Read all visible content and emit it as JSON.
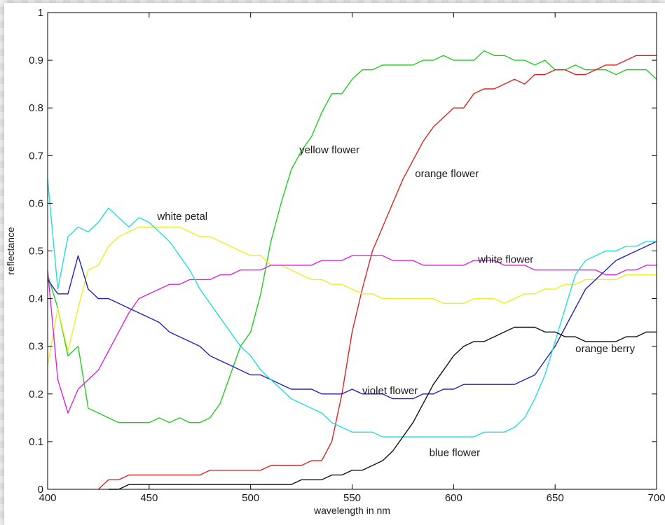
{
  "chart_data": {
    "type": "line",
    "title": "",
    "xlabel": "wavelength in nm",
    "ylabel": "reflectance",
    "xlim": [
      400,
      700
    ],
    "ylim": [
      0,
      1
    ],
    "xticks": [
      "400",
      "450",
      "500",
      "550",
      "600",
      "650",
      "700"
    ],
    "yticks": [
      "0",
      "0.1",
      "0.2",
      "0.3",
      "0.4",
      "0.5",
      "0.6",
      "0.7",
      "0.8",
      "0.9",
      "1"
    ],
    "grid": false,
    "series": [
      {
        "name": "yellow flower",
        "color": "#22cc22",
        "x": [
          400,
          405,
          410,
          415,
          420,
          425,
          430,
          435,
          440,
          445,
          450,
          455,
          460,
          465,
          470,
          475,
          480,
          485,
          490,
          495,
          500,
          505,
          510,
          515,
          520,
          525,
          530,
          535,
          540,
          545,
          550,
          555,
          560,
          565,
          570,
          575,
          580,
          585,
          590,
          595,
          600,
          605,
          610,
          615,
          620,
          625,
          630,
          635,
          640,
          645,
          650,
          655,
          660,
          665,
          670,
          675,
          680,
          685,
          690,
          695,
          700
        ],
        "y": [
          0.45,
          0.38,
          0.28,
          0.3,
          0.17,
          0.16,
          0.15,
          0.14,
          0.14,
          0.14,
          0.14,
          0.15,
          0.14,
          0.15,
          0.14,
          0.14,
          0.15,
          0.18,
          0.24,
          0.3,
          0.33,
          0.41,
          0.52,
          0.6,
          0.67,
          0.71,
          0.74,
          0.79,
          0.83,
          0.83,
          0.86,
          0.88,
          0.88,
          0.89,
          0.89,
          0.89,
          0.89,
          0.9,
          0.9,
          0.91,
          0.9,
          0.9,
          0.9,
          0.92,
          0.91,
          0.91,
          0.9,
          0.9,
          0.89,
          0.9,
          0.88,
          0.88,
          0.89,
          0.88,
          0.88,
          0.88,
          0.87,
          0.88,
          0.88,
          0.88,
          0.86
        ]
      },
      {
        "name": "orange flower",
        "color": "#dd2222",
        "x": [
          425,
          430,
          435,
          440,
          445,
          450,
          455,
          460,
          465,
          470,
          475,
          480,
          485,
          490,
          495,
          500,
          505,
          510,
          515,
          520,
          525,
          530,
          535,
          540,
          545,
          550,
          555,
          560,
          565,
          570,
          575,
          580,
          585,
          590,
          595,
          600,
          605,
          610,
          615,
          620,
          625,
          630,
          635,
          640,
          645,
          650,
          655,
          660,
          665,
          670,
          675,
          680,
          685,
          690,
          695,
          700
        ],
        "y": [
          0.0,
          0.02,
          0.02,
          0.03,
          0.03,
          0.03,
          0.03,
          0.03,
          0.03,
          0.03,
          0.03,
          0.04,
          0.04,
          0.04,
          0.04,
          0.04,
          0.04,
          0.05,
          0.05,
          0.05,
          0.05,
          0.06,
          0.06,
          0.1,
          0.2,
          0.33,
          0.42,
          0.5,
          0.55,
          0.6,
          0.65,
          0.69,
          0.73,
          0.76,
          0.78,
          0.8,
          0.8,
          0.83,
          0.84,
          0.84,
          0.85,
          0.86,
          0.85,
          0.87,
          0.87,
          0.88,
          0.88,
          0.87,
          0.87,
          0.88,
          0.89,
          0.89,
          0.9,
          0.91,
          0.91,
          0.91
        ]
      },
      {
        "name": "white petal",
        "color": "#eeee22",
        "x": [
          400,
          405,
          410,
          415,
          420,
          425,
          430,
          435,
          440,
          445,
          450,
          455,
          460,
          465,
          470,
          475,
          480,
          485,
          490,
          495,
          500,
          505,
          510,
          515,
          520,
          525,
          530,
          535,
          540,
          545,
          550,
          555,
          560,
          565,
          570,
          575,
          580,
          585,
          590,
          595,
          600,
          605,
          610,
          615,
          620,
          625,
          630,
          635,
          640,
          645,
          650,
          655,
          660,
          665,
          670,
          675,
          680,
          685,
          690,
          695,
          700
        ],
        "y": [
          0.26,
          0.38,
          0.29,
          0.38,
          0.46,
          0.47,
          0.51,
          0.53,
          0.54,
          0.55,
          0.55,
          0.55,
          0.55,
          0.55,
          0.54,
          0.53,
          0.53,
          0.52,
          0.51,
          0.5,
          0.49,
          0.49,
          0.47,
          0.47,
          0.46,
          0.45,
          0.44,
          0.44,
          0.43,
          0.43,
          0.42,
          0.41,
          0.41,
          0.4,
          0.4,
          0.4,
          0.4,
          0.4,
          0.4,
          0.39,
          0.39,
          0.39,
          0.4,
          0.4,
          0.4,
          0.39,
          0.4,
          0.41,
          0.41,
          0.42,
          0.42,
          0.43,
          0.43,
          0.44,
          0.44,
          0.44,
          0.44,
          0.45,
          0.45,
          0.45,
          0.45
        ]
      },
      {
        "name": "white flower",
        "color": "#dd22dd",
        "x": [
          400,
          405,
          410,
          415,
          420,
          425,
          430,
          435,
          440,
          445,
          450,
          455,
          460,
          465,
          470,
          475,
          480,
          485,
          490,
          495,
          500,
          505,
          510,
          515,
          520,
          525,
          530,
          535,
          540,
          545,
          550,
          555,
          560,
          565,
          570,
          575,
          580,
          585,
          590,
          595,
          600,
          605,
          610,
          615,
          620,
          625,
          630,
          635,
          640,
          645,
          650,
          655,
          660,
          665,
          670,
          675,
          680,
          685,
          690,
          695,
          700
        ],
        "y": [
          0.46,
          0.23,
          0.16,
          0.21,
          0.23,
          0.25,
          0.29,
          0.33,
          0.37,
          0.4,
          0.41,
          0.42,
          0.43,
          0.43,
          0.44,
          0.44,
          0.44,
          0.45,
          0.45,
          0.46,
          0.46,
          0.46,
          0.47,
          0.47,
          0.47,
          0.47,
          0.47,
          0.48,
          0.48,
          0.48,
          0.49,
          0.49,
          0.49,
          0.49,
          0.48,
          0.48,
          0.48,
          0.47,
          0.47,
          0.47,
          0.47,
          0.47,
          0.48,
          0.48,
          0.48,
          0.47,
          0.47,
          0.47,
          0.46,
          0.46,
          0.46,
          0.46,
          0.46,
          0.46,
          0.46,
          0.45,
          0.45,
          0.46,
          0.46,
          0.47,
          0.47
        ]
      },
      {
        "name": "violet flower",
        "color": "#2222bb",
        "x": [
          400,
          405,
          410,
          415,
          420,
          425,
          430,
          435,
          440,
          445,
          450,
          455,
          460,
          465,
          470,
          475,
          480,
          485,
          490,
          495,
          500,
          505,
          510,
          515,
          520,
          525,
          530,
          535,
          540,
          545,
          550,
          555,
          560,
          565,
          570,
          575,
          580,
          585,
          590,
          595,
          600,
          605,
          610,
          615,
          620,
          625,
          630,
          635,
          640,
          645,
          650,
          655,
          660,
          665,
          670,
          675,
          680,
          685,
          690,
          695,
          700
        ],
        "y": [
          0.44,
          0.41,
          0.41,
          0.49,
          0.42,
          0.4,
          0.4,
          0.39,
          0.38,
          0.37,
          0.36,
          0.35,
          0.33,
          0.32,
          0.31,
          0.3,
          0.28,
          0.27,
          0.26,
          0.25,
          0.24,
          0.24,
          0.23,
          0.22,
          0.21,
          0.21,
          0.21,
          0.2,
          0.2,
          0.2,
          0.21,
          0.2,
          0.2,
          0.2,
          0.19,
          0.19,
          0.19,
          0.2,
          0.2,
          0.21,
          0.21,
          0.22,
          0.22,
          0.22,
          0.22,
          0.22,
          0.22,
          0.23,
          0.24,
          0.27,
          0.3,
          0.34,
          0.38,
          0.42,
          0.44,
          0.46,
          0.48,
          0.49,
          0.5,
          0.51,
          0.52
        ]
      },
      {
        "name": "blue flower",
        "color": "#22dddd",
        "x": [
          400,
          405,
          410,
          415,
          420,
          425,
          430,
          435,
          440,
          445,
          450,
          455,
          460,
          465,
          470,
          475,
          480,
          485,
          490,
          495,
          500,
          505,
          510,
          515,
          520,
          525,
          530,
          535,
          540,
          545,
          550,
          555,
          560,
          565,
          570,
          575,
          580,
          585,
          590,
          595,
          600,
          605,
          610,
          615,
          620,
          625,
          630,
          635,
          640,
          645,
          650,
          655,
          660,
          665,
          670,
          675,
          680,
          685,
          690,
          695,
          700
        ],
        "y": [
          0.65,
          0.42,
          0.53,
          0.55,
          0.54,
          0.56,
          0.59,
          0.57,
          0.55,
          0.57,
          0.56,
          0.54,
          0.52,
          0.49,
          0.46,
          0.42,
          0.39,
          0.36,
          0.33,
          0.3,
          0.28,
          0.25,
          0.23,
          0.21,
          0.19,
          0.18,
          0.17,
          0.16,
          0.14,
          0.13,
          0.12,
          0.12,
          0.12,
          0.11,
          0.11,
          0.11,
          0.11,
          0.11,
          0.11,
          0.11,
          0.11,
          0.11,
          0.11,
          0.12,
          0.12,
          0.12,
          0.13,
          0.15,
          0.19,
          0.24,
          0.31,
          0.38,
          0.45,
          0.48,
          0.49,
          0.5,
          0.5,
          0.51,
          0.51,
          0.52,
          0.52
        ]
      },
      {
        "name": "orange berry",
        "color": "#111111",
        "x": [
          430,
          435,
          440,
          445,
          450,
          455,
          460,
          465,
          470,
          475,
          480,
          485,
          490,
          495,
          500,
          505,
          510,
          515,
          520,
          525,
          530,
          535,
          540,
          545,
          550,
          555,
          560,
          565,
          570,
          575,
          580,
          585,
          590,
          595,
          600,
          605,
          610,
          615,
          620,
          625,
          630,
          635,
          640,
          645,
          650,
          655,
          660,
          665,
          670,
          675,
          680,
          685,
          690,
          695,
          700
        ],
        "y": [
          0.0,
          0.0,
          0.01,
          0.01,
          0.01,
          0.01,
          0.01,
          0.01,
          0.01,
          0.01,
          0.01,
          0.01,
          0.01,
          0.01,
          0.01,
          0.01,
          0.01,
          0.01,
          0.01,
          0.02,
          0.02,
          0.02,
          0.03,
          0.03,
          0.04,
          0.04,
          0.05,
          0.06,
          0.08,
          0.11,
          0.14,
          0.18,
          0.22,
          0.25,
          0.28,
          0.3,
          0.31,
          0.31,
          0.32,
          0.33,
          0.34,
          0.34,
          0.34,
          0.33,
          0.33,
          0.32,
          0.32,
          0.31,
          0.31,
          0.31,
          0.31,
          0.32,
          0.32,
          0.33,
          0.33
        ]
      }
    ],
    "annotations": [
      {
        "text": "yellow flower",
        "x": 524,
        "y": 0.705
      },
      {
        "text": "orange flower",
        "x": 581,
        "y": 0.655
      },
      {
        "text": "white petal",
        "x": 454,
        "y": 0.565
      },
      {
        "text": "white flower",
        "x": 612,
        "y": 0.475
      },
      {
        "text": "orange berry",
        "x": 660,
        "y": 0.288
      },
      {
        "text": "violet flower",
        "x": 555,
        "y": 0.2
      },
      {
        "text": "blue flower",
        "x": 588,
        "y": 0.07
      }
    ]
  }
}
